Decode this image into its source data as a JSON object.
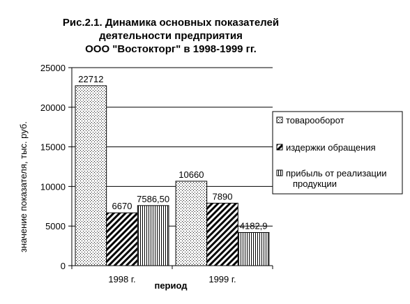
{
  "chart_data": {
    "type": "bar",
    "title_lines": [
      "Рис.2.1. Динамика основных показателей",
      "деятельности предприятия",
      "ООО \"Востокторг\" в 1998-1999 гг."
    ],
    "categories": [
      "1998 г.",
      "1999 г."
    ],
    "series": [
      {
        "name": "товарооборот",
        "values": [
          22712,
          10660
        ],
        "labels": [
          "22712",
          "10660"
        ]
      },
      {
        "name": "издержки обращения",
        "values": [
          6670,
          7890
        ],
        "labels": [
          "6670",
          "7890"
        ]
      },
      {
        "name": "прибыль от реализации продукции",
        "values": [
          7586.5,
          4182.9
        ],
        "labels": [
          "7586,50",
          "4182,9"
        ]
      }
    ],
    "ylabel": "значение показателя, тыс. руб.",
    "xlabel": "период",
    "ylim": [
      0,
      25000
    ],
    "yticks": [
      "0",
      "5000",
      "10000",
      "15000",
      "20000",
      "25000"
    ],
    "grid": true,
    "legend_position": "right",
    "patterns": [
      "dots",
      "diagonal-hatch",
      "vertical-hatch"
    ]
  }
}
